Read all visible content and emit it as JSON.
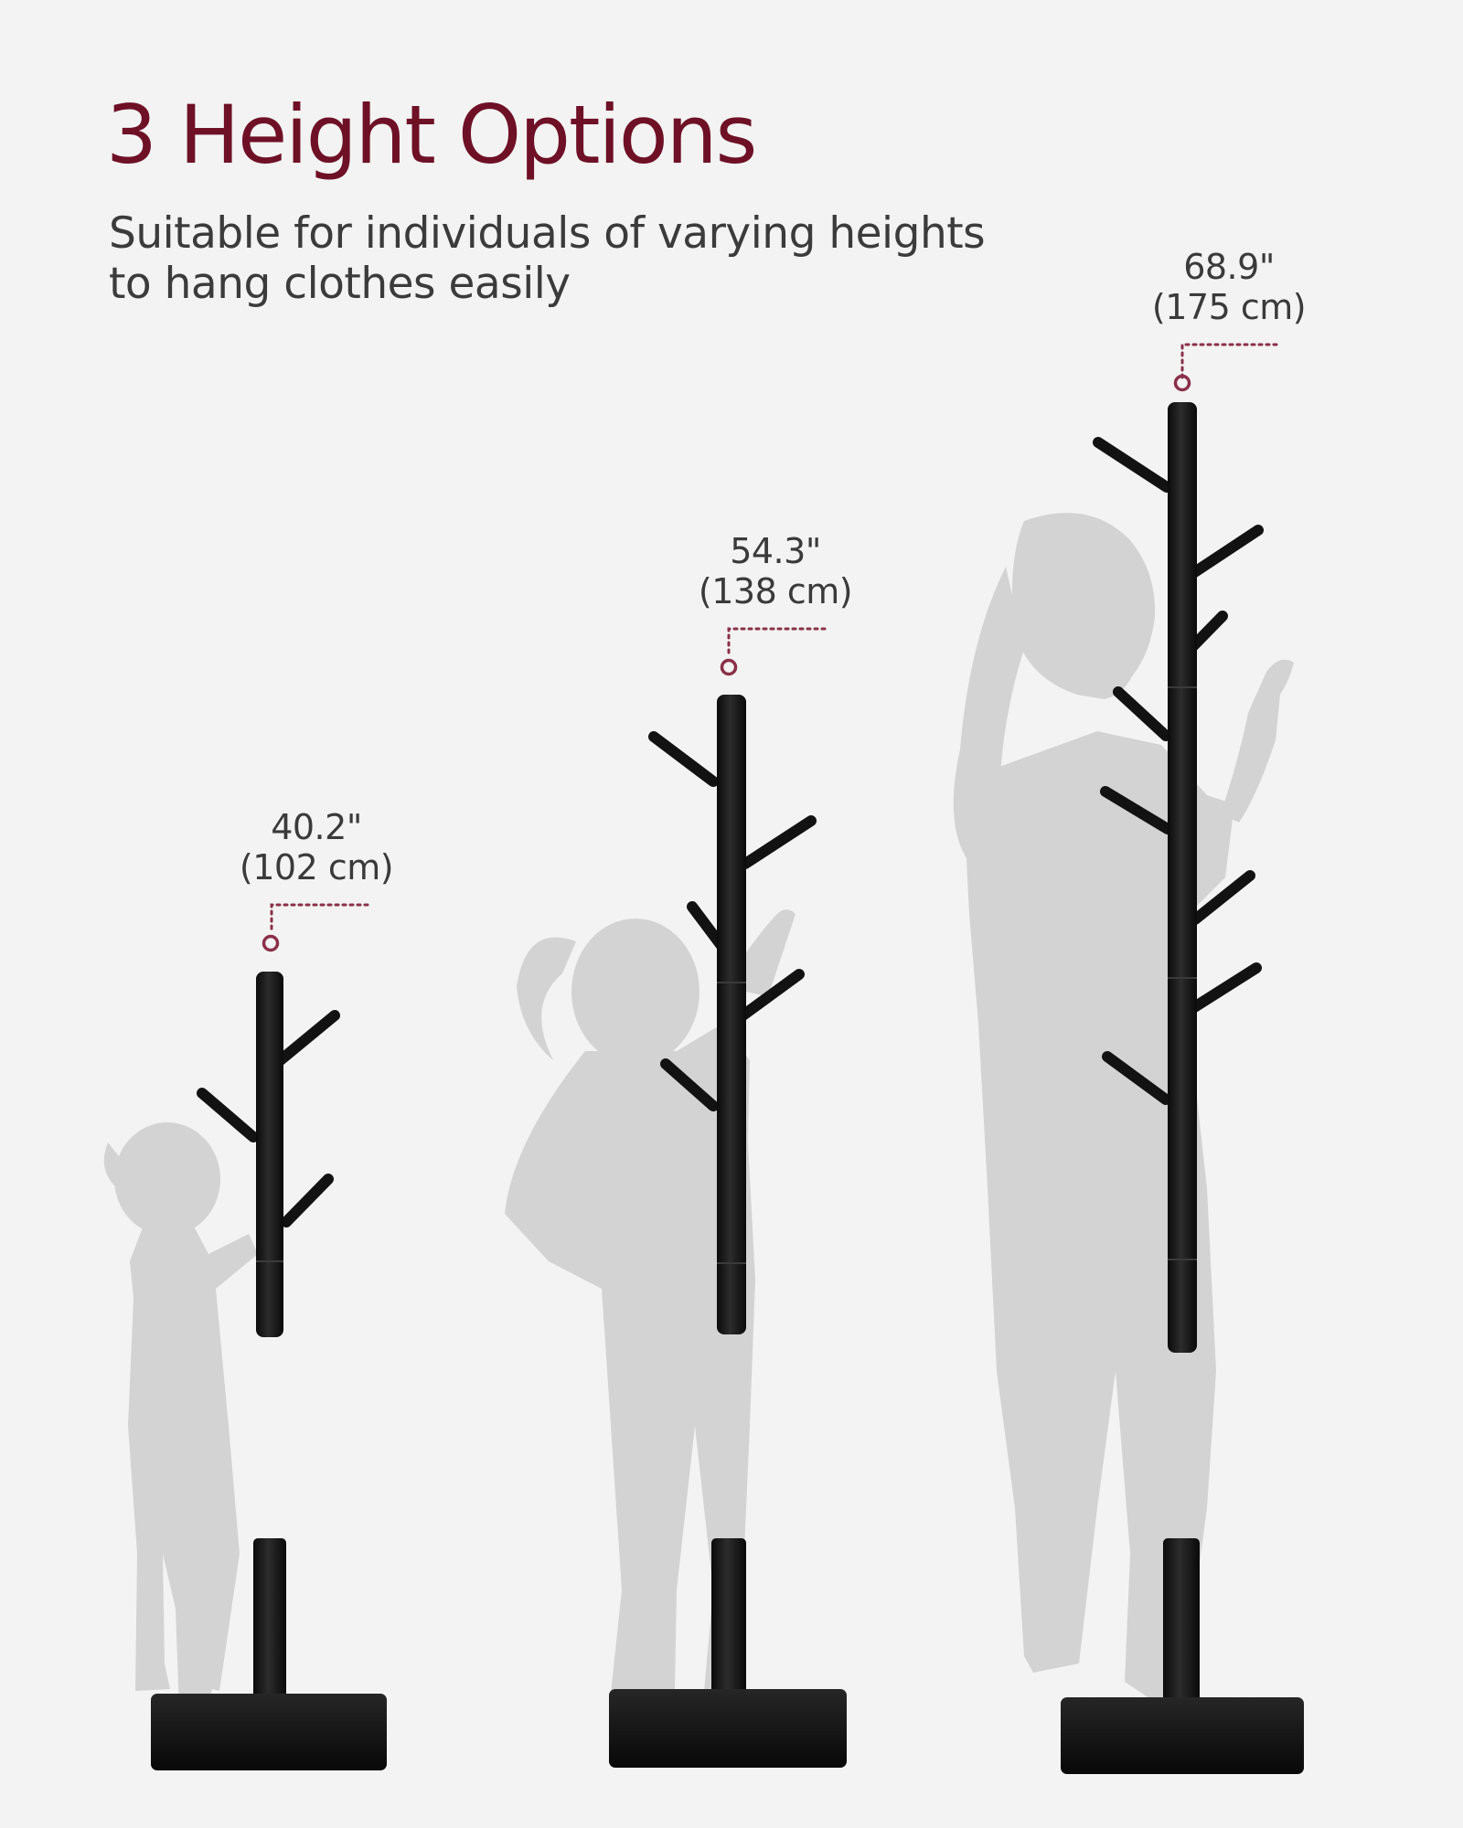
{
  "header": {
    "title": "3 Height Options",
    "subtitle_line1": "Suitable for individuals of varying heights",
    "subtitle_line2": "to hang clothes easily"
  },
  "options": [
    {
      "inches": "40.2\"",
      "cm": "(102 cm)"
    },
    {
      "inches": "54.3\"",
      "cm": "(138 cm)"
    },
    {
      "inches": "68.9\"",
      "cm": "(175 cm)"
    }
  ],
  "colors": {
    "background": "#f3f3f3",
    "title": "#6e1026",
    "marker": "#8a3048",
    "silhouette": "#d3d3d3",
    "rack": "#141414"
  }
}
